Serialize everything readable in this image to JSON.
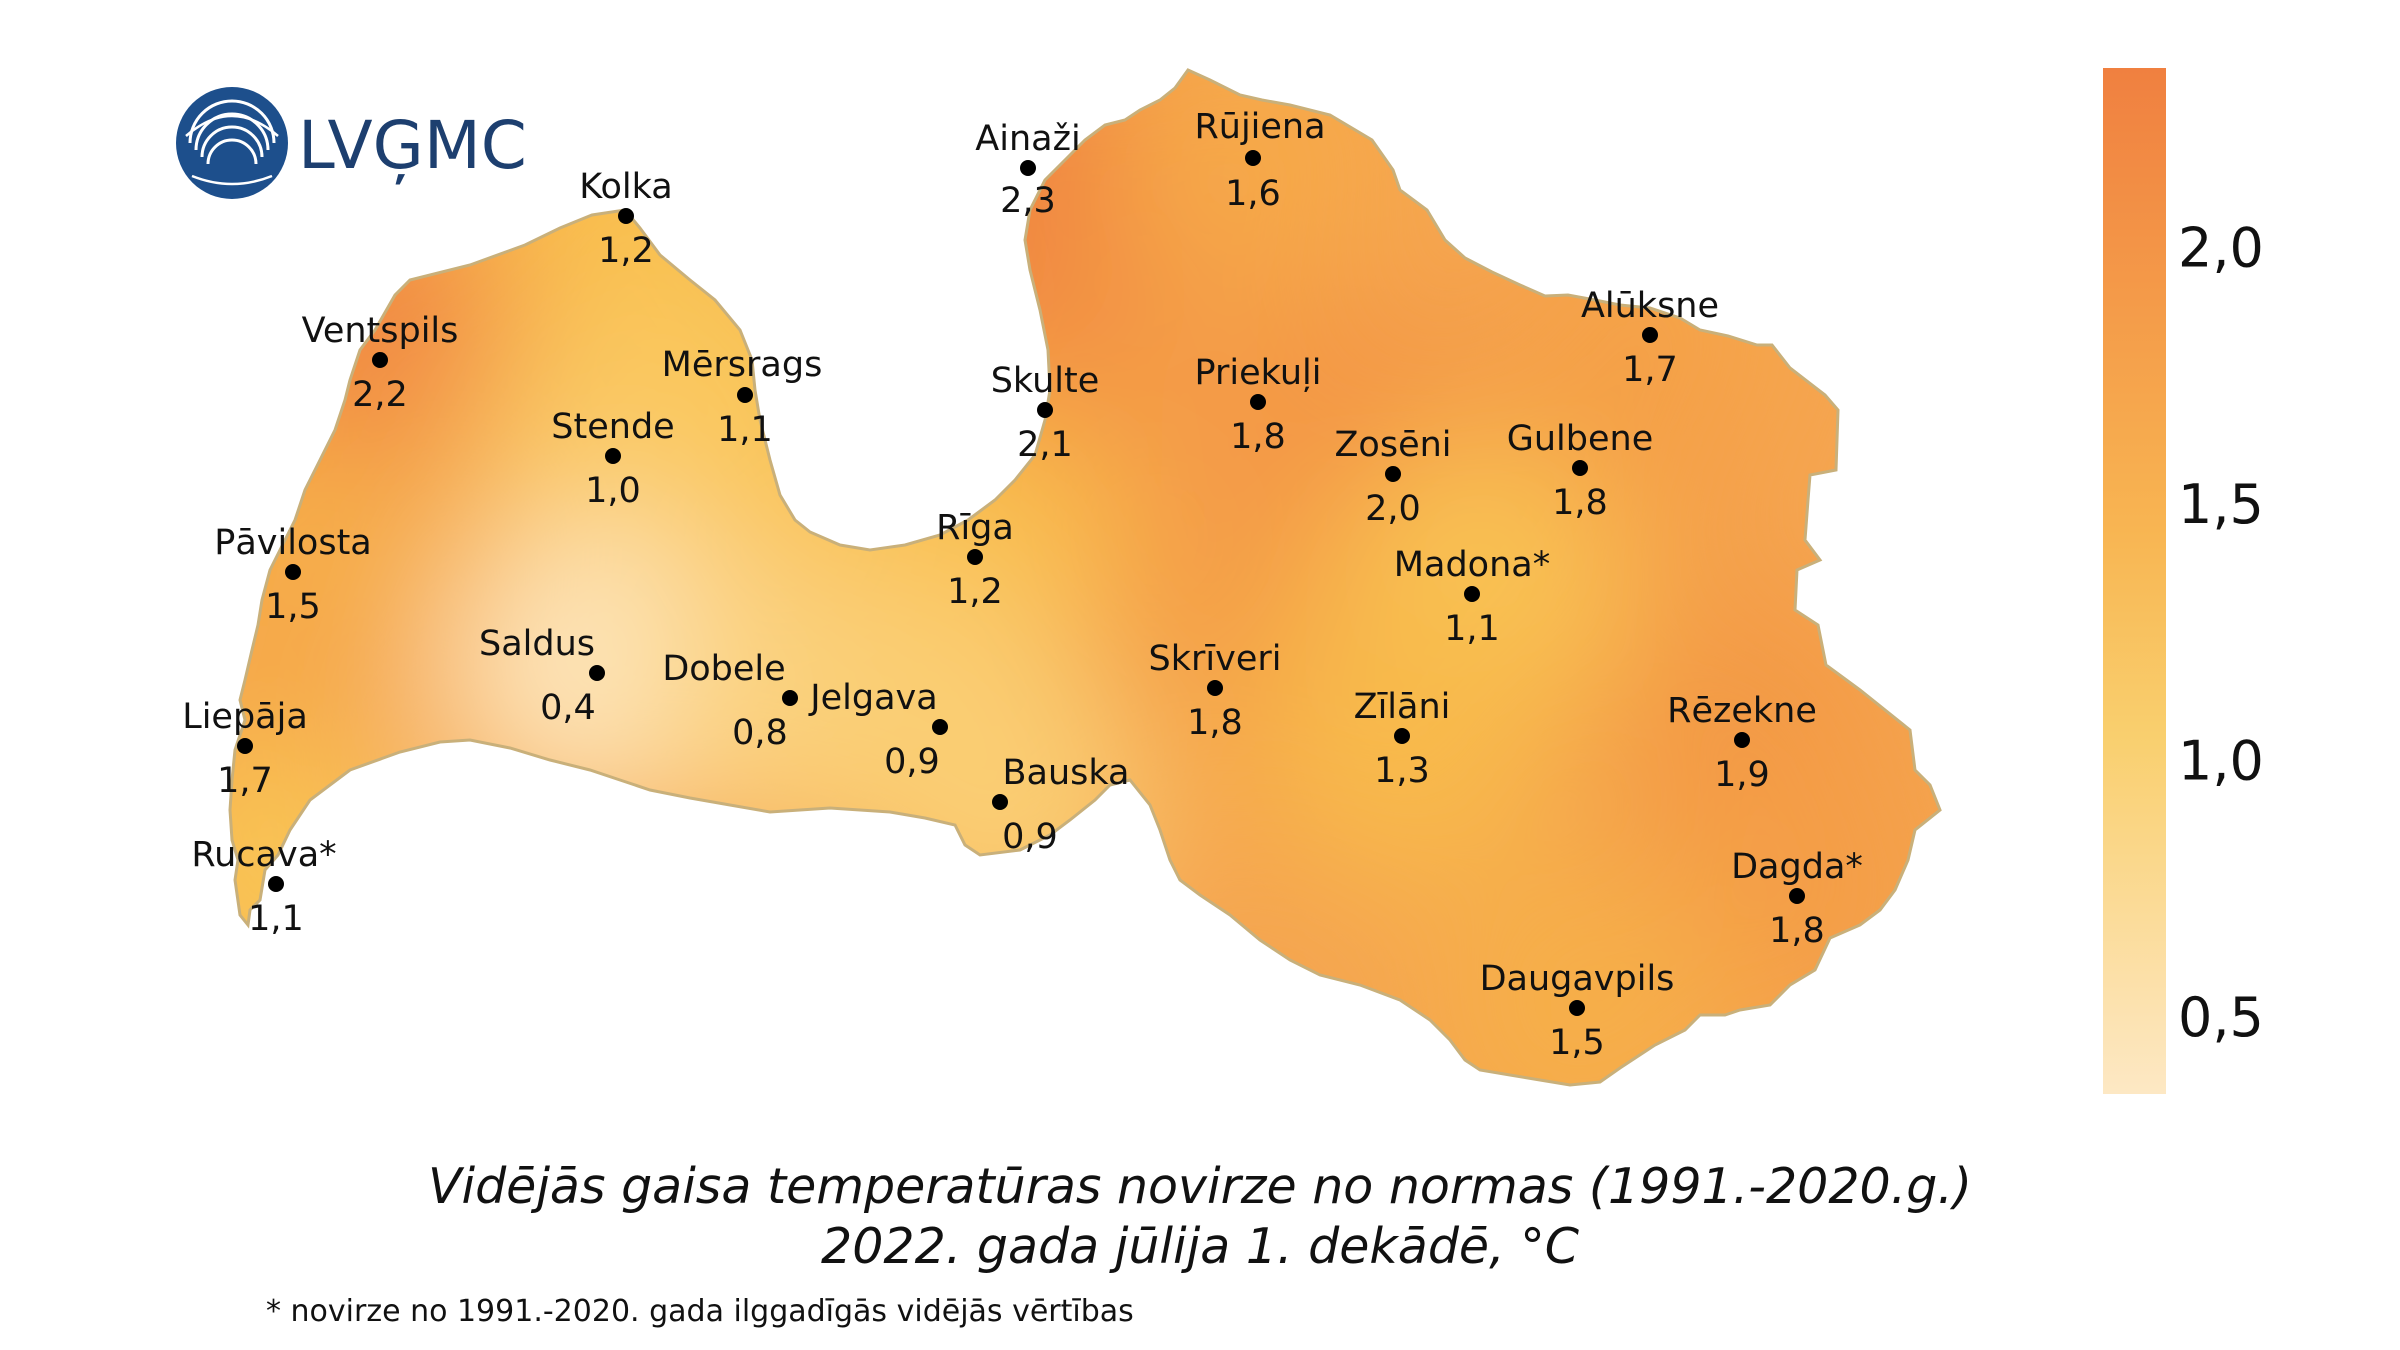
{
  "logo": {
    "text": "LVĢMC",
    "color": "#1d4f8c"
  },
  "caption": {
    "line1": "Vidējās gaisa temperatūras novirze no normas (1991.-2020.g.)",
    "line2": "2022. gada jūlija 1. dekādē, °C",
    "footnote": "* novirze no 1991.-2020. gada ilggadīgās vidējās vērtības"
  },
  "legend": {
    "ticks": [
      "2,0",
      "1,5",
      "1,0",
      "0,5"
    ],
    "tick_values": [
      2.0,
      1.5,
      1.0,
      0.5
    ],
    "range": [
      0.35,
      2.35
    ],
    "color_low": "#fde8c4",
    "color_mid": "#f9c24e",
    "color_high": "#f08040"
  },
  "stations": [
    {
      "name": "Ainaži",
      "value": "2,3",
      "v": 2.3
    },
    {
      "name": "Rūjiena",
      "value": "1,6",
      "v": 1.6
    },
    {
      "name": "Kolka",
      "value": "1,2",
      "v": 1.2
    },
    {
      "name": "Ventspils",
      "value": "2,2",
      "v": 2.2
    },
    {
      "name": "Mērsrags",
      "value": "1,1",
      "v": 1.1
    },
    {
      "name": "Skulte",
      "value": "2,1",
      "v": 2.1
    },
    {
      "name": "Priekuļi",
      "value": "1,8",
      "v": 1.8
    },
    {
      "name": "Alūksne",
      "value": "1,7",
      "v": 1.7
    },
    {
      "name": "Stende",
      "value": "1,0",
      "v": 1.0
    },
    {
      "name": "Zosēni",
      "value": "2,0",
      "v": 2.0
    },
    {
      "name": "Gulbene",
      "value": "1,8",
      "v": 1.8
    },
    {
      "name": "Pāvilosta",
      "value": "1,5",
      "v": 1.5
    },
    {
      "name": "Rīga",
      "value": "1,2",
      "v": 1.2
    },
    {
      "name": "Madona*",
      "value": "1,1",
      "v": 1.1
    },
    {
      "name": "Saldus",
      "value": "0,4",
      "v": 0.4
    },
    {
      "name": "Dobele",
      "value": "0,8",
      "v": 0.8
    },
    {
      "name": "Jelgava",
      "value": "0,9",
      "v": 0.9
    },
    {
      "name": "Skrīveri",
      "value": "1,8",
      "v": 1.8
    },
    {
      "name": "Zīlāni",
      "value": "1,3",
      "v": 1.3
    },
    {
      "name": "Rēzekne",
      "value": "1,9",
      "v": 1.9
    },
    {
      "name": "Liepāja",
      "value": "1,7",
      "v": 1.7
    },
    {
      "name": "Bauska",
      "value": "0,9",
      "v": 0.9
    },
    {
      "name": "Rucava*",
      "value": "1,1",
      "v": 1.1
    },
    {
      "name": "Dagda*",
      "value": "1,8",
      "v": 1.8
    },
    {
      "name": "Daugavpils",
      "value": "1,5",
      "v": 1.5
    }
  ]
}
